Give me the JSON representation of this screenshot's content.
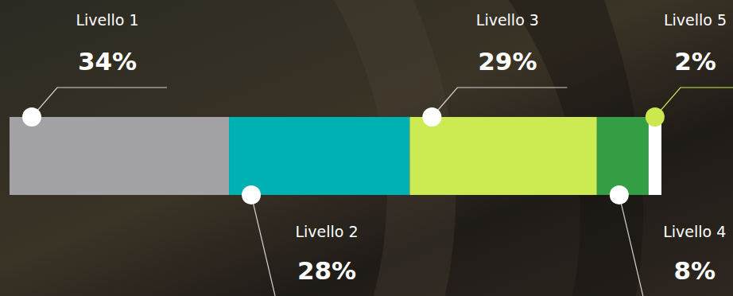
{
  "chart_data": {
    "type": "bar",
    "orientation": "horizontal",
    "stacked": true,
    "tick_labels": false,
    "data_labels": true,
    "categories": [
      "Livello 1",
      "Livello 2",
      "Livello 3",
      "Livello 4",
      "Livello 5"
    ],
    "values": [
      34,
      28,
      29,
      8,
      2
    ],
    "value_labels": [
      "34%",
      "28%",
      "29%",
      "8%",
      "2%"
    ],
    "colors": [
      "#a3a3a6",
      "#00b1b3",
      "#ccea52",
      "#339e44",
      "#ffffff"
    ]
  }
}
